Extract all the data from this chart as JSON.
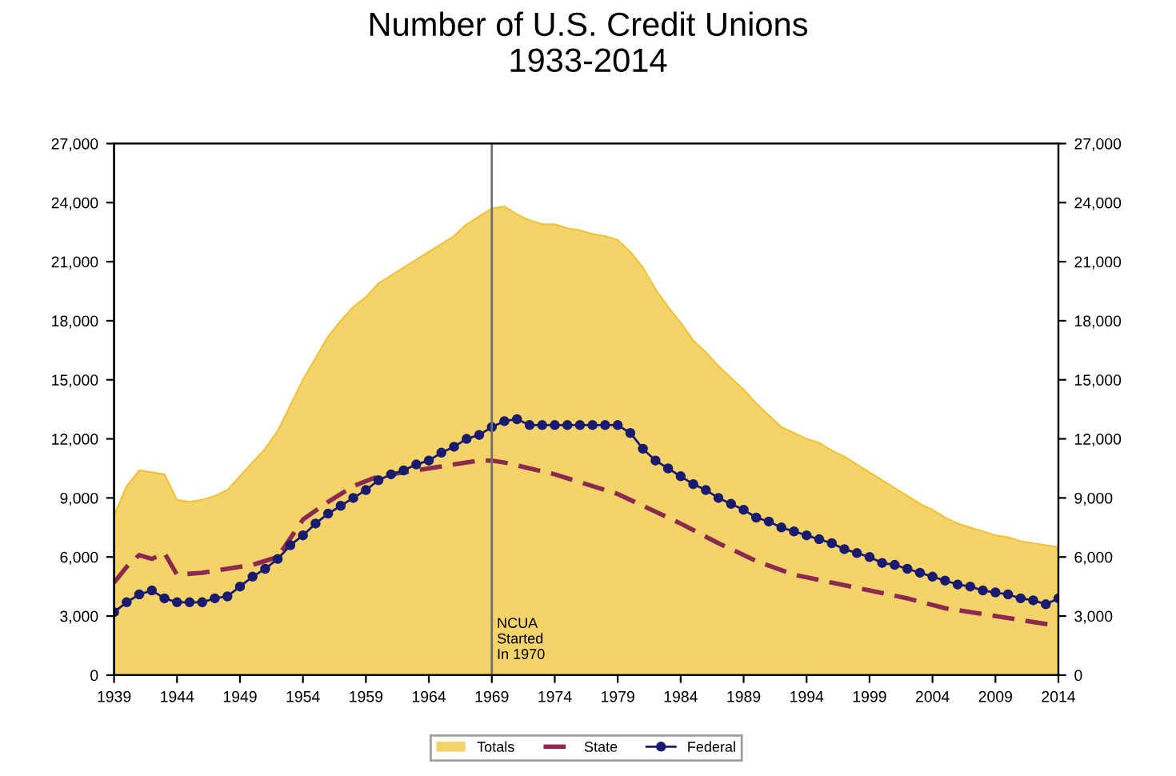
{
  "chart_data": {
    "type": "area",
    "title": "Number of U.S. Credit Unions\n1933-2014",
    "xlim": [
      1939,
      2014
    ],
    "xticks": [
      1939,
      1944,
      1949,
      1954,
      1959,
      1964,
      1969,
      1974,
      1979,
      1984,
      1989,
      1994,
      1999,
      2004,
      2009,
      2014
    ],
    "ylim": [
      0,
      27000
    ],
    "yticks": [
      {
        "value": 0,
        "label": "0"
      },
      {
        "value": 3000,
        "label": "3,000"
      },
      {
        "value": 6000,
        "label": "6,000"
      },
      {
        "value": 9000,
        "label": "9,000"
      },
      {
        "value": 12000,
        "label": "12,000"
      },
      {
        "value": 15000,
        "label": "15,000"
      },
      {
        "value": 18000,
        "label": "18,000"
      },
      {
        "value": 21000,
        "label": "21,000"
      },
      {
        "value": 24000,
        "label": "24,000"
      },
      {
        "value": 27000,
        "label": "27,000"
      }
    ],
    "y2lim": [
      0,
      27000
    ],
    "y2ticks": [
      {
        "value": 0,
        "label": "0"
      },
      {
        "value": 3000,
        "label": "3,000"
      },
      {
        "value": 6000,
        "label": "6,000"
      },
      {
        "value": 9000,
        "label": "9,000"
      },
      {
        "value": 12000,
        "label": "12,000"
      },
      {
        "value": 15000,
        "label": "15,000"
      },
      {
        "value": 18000,
        "label": "18,000"
      },
      {
        "value": 21000,
        "label": "21,000"
      },
      {
        "value": 24000,
        "label": "24,000"
      },
      {
        "value": 27000,
        "label": "27,000"
      }
    ],
    "grid": false,
    "legend": "bottom",
    "ref_lines": [
      {
        "axis": "x",
        "value": 1969,
        "label": "NCUA\nStarted\nIn 1970",
        "color": "#707070"
      }
    ],
    "series": [
      {
        "name": "Totals",
        "color": "#f0c43a",
        "x": [
          1939,
          1940,
          1941,
          1942,
          1943,
          1944,
          1945,
          1946,
          1947,
          1948,
          1949,
          1950,
          1951,
          1952,
          1953,
          1954,
          1955,
          1956,
          1957,
          1958,
          1959,
          1960,
          1961,
          1962,
          1963,
          1964,
          1965,
          1966,
          1967,
          1968,
          1969,
          1970,
          1971,
          1972,
          1973,
          1974,
          1975,
          1976,
          1977,
          1978,
          1979,
          1980,
          1981,
          1982,
          1983,
          1984,
          1985,
          1986,
          1987,
          1988,
          1989,
          1990,
          1991,
          1992,
          1993,
          1994,
          1995,
          1996,
          1997,
          1998,
          1999,
          2000,
          2001,
          2002,
          2003,
          2004,
          2005,
          2006,
          2007,
          2008,
          2009,
          2010,
          2011,
          2012,
          2013,
          2014
        ],
        "values": [
          8100,
          9600,
          10400,
          10300,
          10200,
          8900,
          8800,
          8900,
          9100,
          9400,
          10100,
          10800,
          11500,
          12400,
          13700,
          15000,
          16100,
          17200,
          18000,
          18700,
          19200,
          19900,
          20300,
          20700,
          21100,
          21500,
          21900,
          22300,
          22900,
          23300,
          23700,
          23800,
          23400,
          23100,
          22900,
          22900,
          22700,
          22600,
          22400,
          22300,
          22100,
          21500,
          20700,
          19600,
          18700,
          17900,
          17000,
          16400,
          15700,
          15100,
          14500,
          13800,
          13200,
          12600,
          12300,
          12000,
          11800,
          11400,
          11100,
          10700,
          10300,
          9900,
          9500,
          9100,
          8700,
          8400,
          8000,
          7700,
          7500,
          7300,
          7100,
          7000,
          6800,
          6700,
          6600,
          6500
        ]
      },
      {
        "name": "State",
        "type": "line",
        "color": "#8b2a4e",
        "line_style": "dashed",
        "marker": "none",
        "x": [
          1939,
          1940,
          1941,
          1942,
          1943,
          1944,
          1946,
          1948,
          1950,
          1952,
          1954,
          1956,
          1958,
          1960,
          1962,
          1964,
          1966,
          1968,
          1969,
          1970,
          1972,
          1974,
          1976,
          1979,
          1981,
          1984,
          1987,
          1990,
          1993,
          1996,
          1999,
          2002,
          2005,
          2008,
          2011,
          2014
        ],
        "values": [
          4700,
          5500,
          6100,
          5900,
          6200,
          5100,
          5200,
          5400,
          5600,
          6000,
          7900,
          8800,
          9600,
          10100,
          10300,
          10500,
          10700,
          10900,
          10900,
          10800,
          10500,
          10200,
          9800,
          9200,
          8600,
          7700,
          6700,
          5800,
          5100,
          4700,
          4300,
          3900,
          3400,
          3100,
          2800,
          2500
        ]
      },
      {
        "name": "Federal",
        "type": "line",
        "color": "#1a1a6e",
        "line_style": "solid",
        "marker": "circle",
        "x": [
          1939,
          1940,
          1941,
          1942,
          1943,
          1944,
          1945,
          1946,
          1947,
          1948,
          1949,
          1950,
          1951,
          1952,
          1953,
          1954,
          1955,
          1956,
          1957,
          1958,
          1959,
          1960,
          1961,
          1962,
          1963,
          1964,
          1965,
          1966,
          1967,
          1968,
          1969,
          1970,
          1971,
          1972,
          1973,
          1974,
          1975,
          1976,
          1977,
          1978,
          1979,
          1980,
          1981,
          1982,
          1983,
          1984,
          1985,
          1986,
          1987,
          1988,
          1989,
          1990,
          1991,
          1992,
          1993,
          1994,
          1995,
          1996,
          1997,
          1998,
          1999,
          2000,
          2001,
          2002,
          2003,
          2004,
          2005,
          2006,
          2007,
          2008,
          2009,
          2010,
          2011,
          2012,
          2013,
          2014
        ],
        "values": [
          3200,
          3700,
          4100,
          4300,
          3900,
          3700,
          3700,
          3700,
          3900,
          4000,
          4500,
          5000,
          5400,
          5900,
          6600,
          7100,
          7700,
          8200,
          8600,
          9000,
          9400,
          9900,
          10200,
          10400,
          10700,
          10900,
          11300,
          11600,
          12000,
          12200,
          12600,
          12900,
          13000,
          12700,
          12700,
          12700,
          12700,
          12700,
          12700,
          12700,
          12700,
          12300,
          11500,
          10900,
          10500,
          10100,
          9700,
          9400,
          9000,
          8700,
          8400,
          8000,
          7800,
          7500,
          7300,
          7100,
          6900,
          6700,
          6400,
          6200,
          6000,
          5700,
          5600,
          5400,
          5200,
          5000,
          4800,
          4600,
          4500,
          4300,
          4200,
          4100,
          3900,
          3800,
          3600,
          3900
        ]
      }
    ]
  }
}
